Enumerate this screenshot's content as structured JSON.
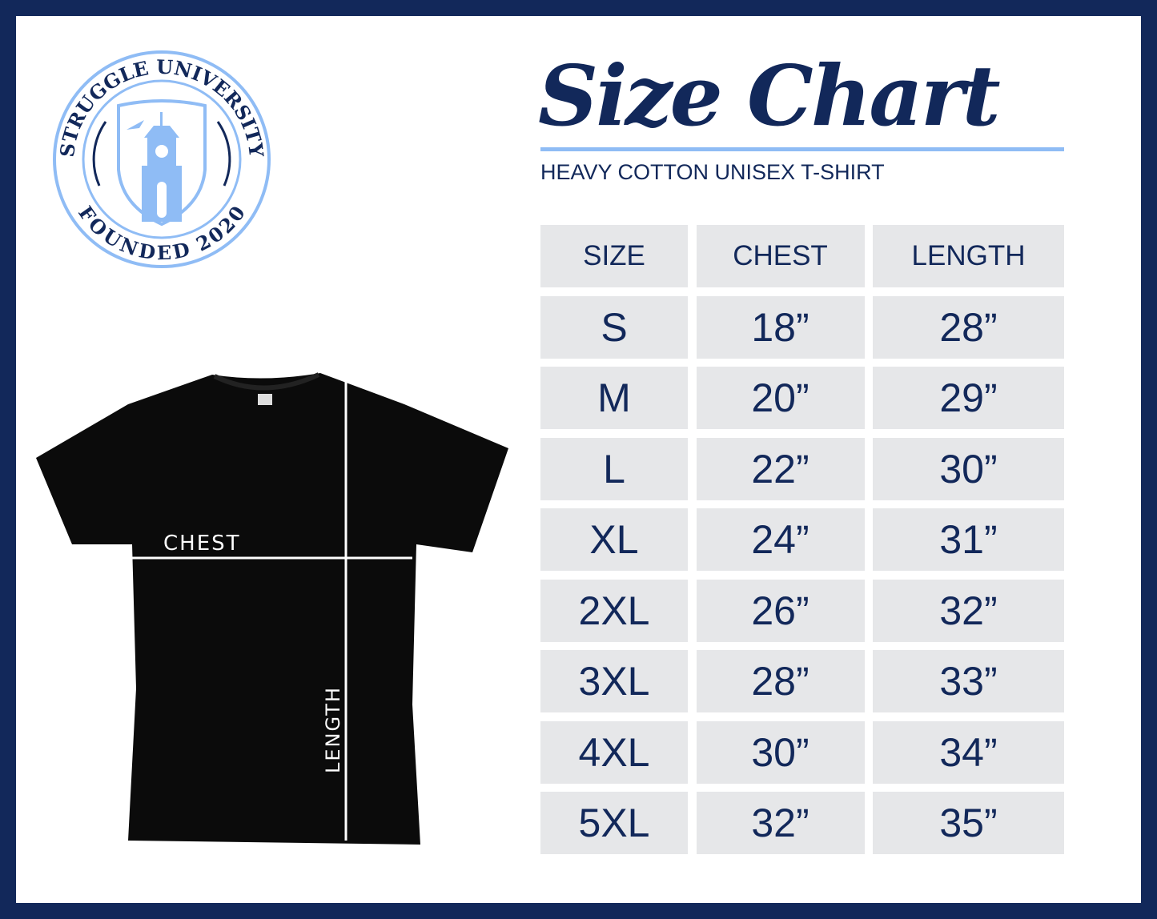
{
  "logo": {
    "top_text": "STRUGGLE UNIVERSITY",
    "bottom_text": "FOUNDED 2020"
  },
  "title": "Size Chart",
  "subtitle": "HEAVY COTTON UNISEX T-SHIRT",
  "shirt_labels": {
    "chest": "CHEST",
    "length": "LENGTH"
  },
  "table": {
    "headers": [
      "SIZE",
      "CHEST",
      "LENGTH"
    ],
    "rows": [
      [
        "S",
        "18”",
        "28”"
      ],
      [
        "M",
        "20”",
        "29”"
      ],
      [
        "L",
        "22”",
        "30”"
      ],
      [
        "XL",
        "24”",
        "31”"
      ],
      [
        "2XL",
        "26”",
        "32”"
      ],
      [
        "3XL",
        "28”",
        "33”"
      ],
      [
        "4XL",
        "30”",
        "34”"
      ],
      [
        "5XL",
        "32”",
        "35”"
      ]
    ]
  },
  "colors": {
    "navy": "#12285a",
    "light_blue": "#8fbcf5",
    "cell_gray": "#e6e7e9"
  }
}
